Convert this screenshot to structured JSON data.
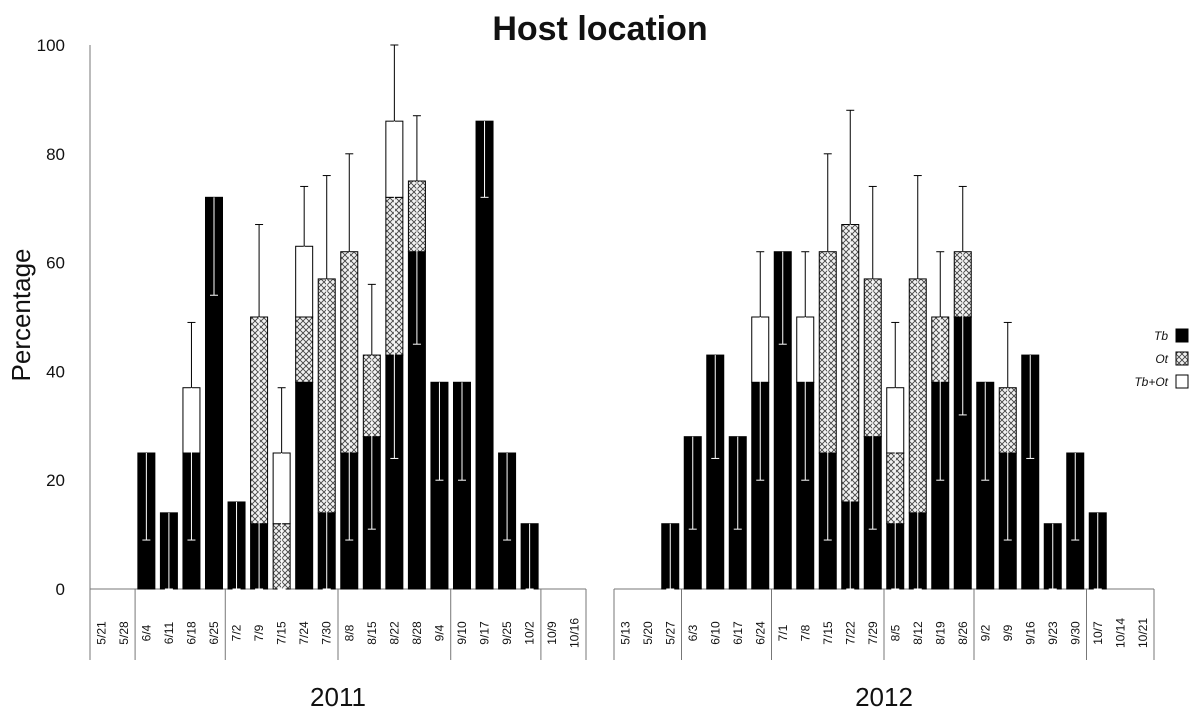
{
  "chart_data": {
    "type": "bar",
    "stacked": true,
    "title": "Host location",
    "ylabel": "Percentage",
    "xlabel": "",
    "ylim": [
      0,
      100
    ],
    "yticks": [
      0,
      20,
      40,
      60,
      80,
      100
    ],
    "legend_position": "right",
    "legend": [
      {
        "label": "Tb",
        "pattern": "solid-black"
      },
      {
        "label": "Ot",
        "pattern": "crosshatch"
      },
      {
        "label": "Tb+Ot",
        "pattern": "white"
      }
    ],
    "panels": [
      {
        "year": "2011",
        "categories": [
          "5/21",
          "5/28",
          "6/4",
          "6/11",
          "6/18",
          "6/25",
          "7/2",
          "7/9",
          "7/15",
          "7/24",
          "7/30",
          "8/8",
          "8/15",
          "8/22",
          "8/28",
          "9/4",
          "9/10",
          "9/17",
          "9/25",
          "10/2",
          "10/9",
          "10/16"
        ],
        "month_groups": [
          2,
          4,
          5,
          5,
          4,
          2
        ],
        "series": [
          {
            "name": "Tb",
            "values": [
              0,
              0,
              25,
              14,
              25,
              72,
              16,
              12,
              0,
              38,
              14,
              25,
              28,
              43,
              62,
              38,
              38,
              86,
              25,
              12,
              0,
              0
            ]
          },
          {
            "name": "Ot",
            "values": [
              0,
              0,
              0,
              0,
              0,
              0,
              0,
              38,
              12,
              12,
              43,
              37,
              15,
              29,
              13,
              0,
              0,
              0,
              0,
              0,
              0,
              0
            ]
          },
          {
            "name": "Tb+Ot",
            "values": [
              0,
              0,
              0,
              0,
              12,
              0,
              0,
              0,
              13,
              13,
              0,
              0,
              0,
              14,
              0,
              0,
              0,
              0,
              0,
              0,
              0,
              0
            ]
          }
        ],
        "error_bar_values": [
          null,
          null,
          9,
          0,
          9,
          54,
          0,
          0,
          0,
          62,
          0,
          9,
          11,
          24,
          45,
          20,
          20,
          72,
          9,
          0,
          null,
          null
        ],
        "error_bar_tops": [
          null,
          null,
          null,
          null,
          49,
          null,
          null,
          67,
          37,
          74,
          76,
          80,
          56,
          100,
          87,
          null,
          null,
          null,
          null,
          null,
          null,
          null
        ]
      },
      {
        "year": "2012",
        "categories": [
          "5/13",
          "5/20",
          "5/27",
          "6/3",
          "6/10",
          "6/17",
          "6/24",
          "7/1",
          "7/8",
          "7/15",
          "7/22",
          "7/29",
          "8/5",
          "8/12",
          "8/19",
          "8/26",
          "9/2",
          "9/9",
          "9/16",
          "9/23",
          "9/30",
          "10/7",
          "10/14",
          "10/21"
        ],
        "month_groups": [
          3,
          4,
          5,
          4,
          5,
          3
        ],
        "series": [
          {
            "name": "Tb",
            "values": [
              0,
              0,
              12,
              28,
              43,
              28,
              38,
              62,
              38,
              25,
              16,
              28,
              12,
              14,
              38,
              50,
              38,
              25,
              43,
              12,
              25,
              14,
              0,
              0
            ]
          },
          {
            "name": "Ot",
            "values": [
              0,
              0,
              0,
              0,
              0,
              0,
              0,
              0,
              0,
              37,
              51,
              29,
              13,
              43,
              12,
              12,
              0,
              12,
              0,
              0,
              0,
              0,
              0,
              0
            ]
          },
          {
            "name": "Tb+Ot",
            "values": [
              0,
              0,
              0,
              0,
              0,
              0,
              12,
              0,
              12,
              0,
              0,
              0,
              12,
              0,
              0,
              0,
              0,
              0,
              0,
              0,
              0,
              0,
              0,
              0
            ]
          }
        ],
        "error_bar_values": [
          null,
          null,
          0,
          11,
          24,
          11,
          20,
          45,
          20,
          9,
          0,
          11,
          0,
          0,
          20,
          32,
          20,
          9,
          24,
          0,
          9,
          0,
          null,
          null
        ],
        "error_bar_tops": [
          null,
          null,
          null,
          null,
          null,
          null,
          62,
          null,
          62,
          80,
          88,
          74,
          49,
          76,
          62,
          74,
          null,
          49,
          null,
          null,
          null,
          null,
          null,
          null
        ]
      }
    ]
  }
}
